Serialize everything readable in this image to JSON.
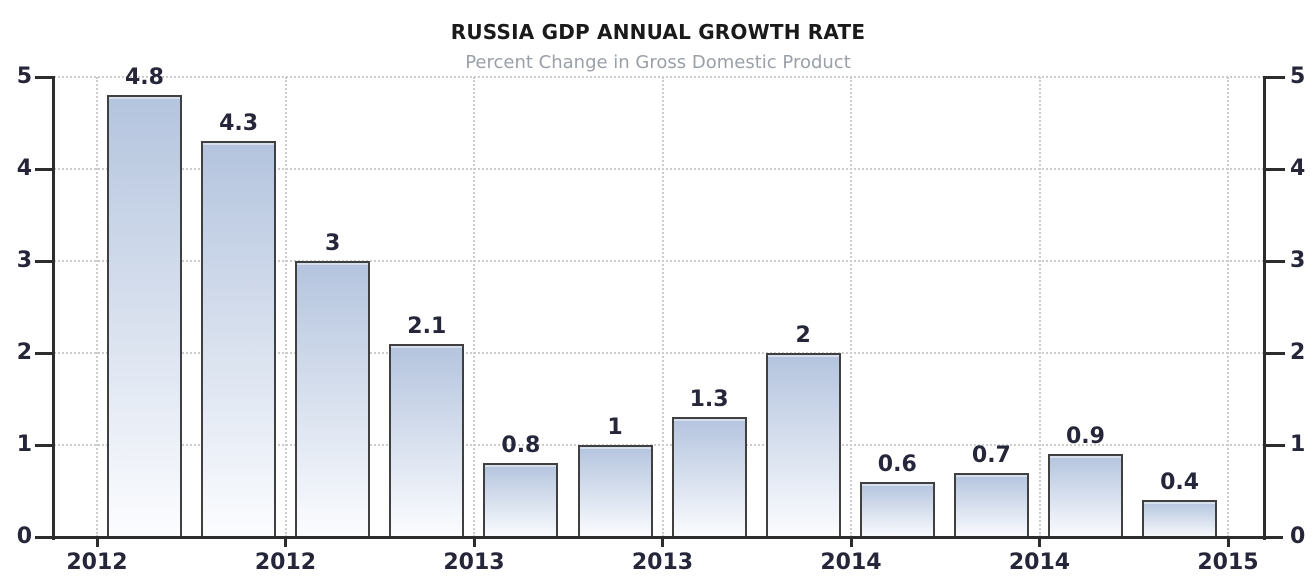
{
  "chart_data": {
    "type": "bar",
    "title": "RUSSIA GDP ANNUAL GROWTH RATE",
    "subtitle": "Percent Change in Gross Domestic Product",
    "values": [
      4.8,
      4.3,
      3,
      2.1,
      0.8,
      1,
      1.3,
      2,
      0.6,
      0.7,
      0.9,
      0.4
    ],
    "bar_value_labels": [
      "4.8",
      "4.3",
      "3",
      "2.1",
      "0.8",
      "1",
      "1.3",
      "2",
      "0.6",
      "0.7",
      "0.9",
      "0.4"
    ],
    "x_tick_labels": [
      "2012",
      "2012",
      "2013",
      "2013",
      "2014",
      "2014",
      "2015"
    ],
    "y_tick_labels": [
      "0",
      "1",
      "2",
      "3",
      "4",
      "5"
    ],
    "ylim": [
      0,
      5
    ],
    "xlabel": "",
    "ylabel": "",
    "legend": "none",
    "grid": "dotted horizontal and vertical",
    "y_axis_sides": "both",
    "x_ticks_between_bar_pairs": true,
    "colors": {
      "background": "#ffffff",
      "bar_gradient_top": "#b4c4de",
      "bar_gradient_bottom": "#fcfdff",
      "bar_border": "#404040",
      "axis": "#2d2d2d",
      "gridline": "#cccccc",
      "tick_label": "#26263a",
      "title": "#1a1a1a",
      "subtitle": "#9aa0a8"
    }
  }
}
